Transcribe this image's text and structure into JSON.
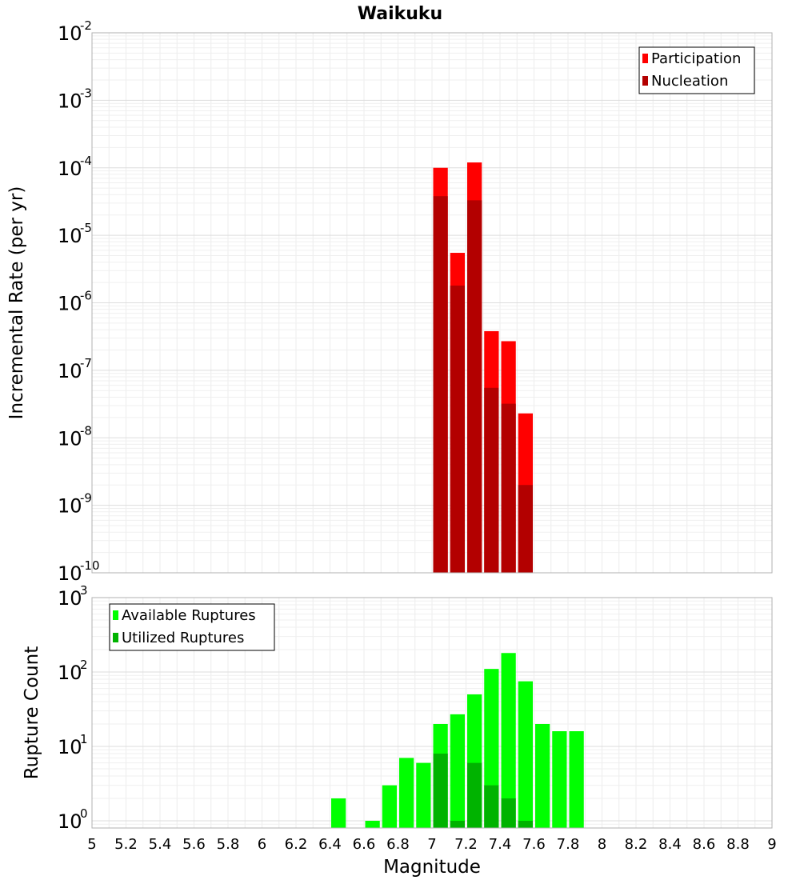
{
  "chart_data": {
    "title": "Waikuku",
    "x_axis": {
      "label": "Magnitude",
      "range": [
        5,
        9
      ],
      "tick_labels": [
        "5",
        "5.2",
        "5.4",
        "5.6",
        "5.8",
        "6",
        "6.2",
        "6.4",
        "6.6",
        "6.8",
        "7",
        "7.2",
        "7.4",
        "7.6",
        "7.8",
        "8",
        "8.2",
        "8.4",
        "8.6",
        "8.8",
        "9"
      ]
    },
    "panels": [
      {
        "type": "bar",
        "ylabel": "Incremental Rate (per yr)",
        "yscale": "log",
        "ylim": [
          1e-10,
          0.01
        ],
        "grid": true,
        "legend_position": "top-right",
        "y_ticks": [
          {
            "base": "10",
            "exp": "-10"
          },
          {
            "base": "10",
            "exp": "-9"
          },
          {
            "base": "10",
            "exp": "-8"
          },
          {
            "base": "10",
            "exp": "-7"
          },
          {
            "base": "10",
            "exp": "-6"
          },
          {
            "base": "10",
            "exp": "-5"
          },
          {
            "base": "10",
            "exp": "-4"
          },
          {
            "base": "10",
            "exp": "-3"
          },
          {
            "base": "10",
            "exp": "-2"
          }
        ],
        "series": [
          {
            "name": "Participation",
            "color": "#ff0000",
            "x": [
              7.05,
              7.15,
              7.25,
              7.35,
              7.45,
              7.55
            ],
            "values": [
              0.0001,
              5.5e-06,
              0.00012,
              3.8e-07,
              2.7e-07,
              2.3e-08
            ]
          },
          {
            "name": "Nucleation",
            "color": "#b30000",
            "x": [
              7.05,
              7.15,
              7.25,
              7.35,
              7.45,
              7.55
            ],
            "values": [
              3.8e-05,
              1.8e-06,
              3.3e-05,
              5.5e-08,
              3.2e-08,
              2e-09
            ]
          }
        ]
      },
      {
        "type": "bar",
        "ylabel": "Rupture Count",
        "yscale": "log",
        "ylim": [
          0.8,
          1000
        ],
        "grid": true,
        "legend_position": "top-left",
        "y_ticks": [
          {
            "base": "10",
            "exp": "0"
          },
          {
            "base": "10",
            "exp": "1"
          },
          {
            "base": "10",
            "exp": "2"
          },
          {
            "base": "10",
            "exp": "3"
          }
        ],
        "series": [
          {
            "name": "Available Ruptures",
            "color": "#00ff00",
            "x": [
              6.45,
              6.65,
              6.75,
              6.85,
              6.95,
              7.05,
              7.15,
              7.25,
              7.35,
              7.45,
              7.55,
              7.65,
              7.75,
              7.85
            ],
            "values": [
              2,
              1,
              3,
              7,
              6,
              20,
              27,
              50,
              110,
              180,
              75,
              20,
              16,
              16
            ]
          },
          {
            "name": "Utilized Ruptures",
            "color": "#00b300",
            "x": [
              7.05,
              7.15,
              7.25,
              7.35,
              7.45,
              7.55
            ],
            "values": [
              8,
              1,
              6,
              3,
              2,
              1
            ]
          }
        ]
      }
    ]
  }
}
